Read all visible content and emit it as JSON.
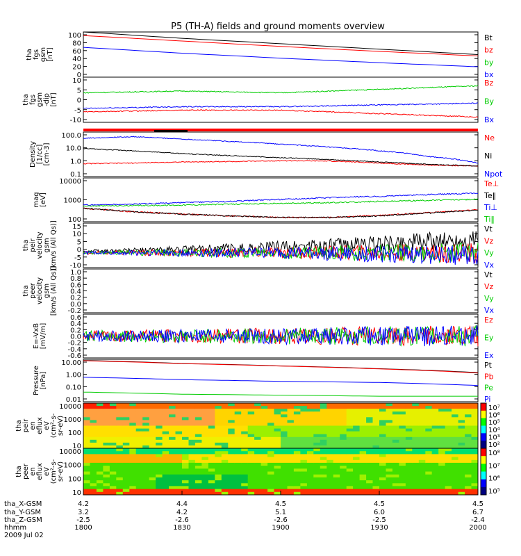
{
  "title": "P5 (TH-A) fields and ground moments overview",
  "colors": {
    "black": "#000000",
    "red": "#ff0000",
    "green": "#00cc00",
    "blue": "#0000ff",
    "axis": "#000000"
  },
  "chart_data": [
    {
      "id": "fgs_gsm",
      "type": "line",
      "ylabel": [
        "tha",
        "fgs",
        "gsm",
        "[nT]"
      ],
      "ylim": [
        0,
        100
      ],
      "yticks": [
        "100",
        "80",
        "60",
        "40",
        "20",
        "0"
      ],
      "legend": [
        {
          "label": "Bt",
          "color": "black"
        },
        {
          "label": "bz",
          "color": "red"
        },
        {
          "label": "by",
          "color": "green"
        },
        {
          "label": "bx",
          "color": "blue"
        }
      ],
      "x": [
        1800,
        1830,
        1900,
        1930,
        2000
      ],
      "series": [
        {
          "name": "Bt",
          "color": "black",
          "values": [
            100,
            86,
            74,
            62,
            50
          ]
        },
        {
          "name": "bz",
          "color": "red",
          "values": [
            92,
            80,
            68,
            57,
            47
          ]
        },
        {
          "name": "by",
          "color": "green",
          "values": [
            0,
            0,
            0,
            0,
            0
          ]
        },
        {
          "name": "bx",
          "color": "blue",
          "values": [
            66,
            53,
            42,
            32,
            23
          ]
        }
      ]
    },
    {
      "id": "fgs_gsm_dip",
      "type": "line",
      "ylabel": [
        "tha",
        "fgs",
        "gsm",
        "-dip",
        "[nT]"
      ],
      "ylim": [
        -13,
        13
      ],
      "yticks": [
        "10",
        "5",
        "0",
        "-5",
        "-10"
      ],
      "legend": [
        {
          "label": "Bz",
          "color": "red"
        },
        {
          "label": "By",
          "color": "green"
        },
        {
          "label": "Bx",
          "color": "blue"
        }
      ],
      "x": [
        1800,
        1830,
        1900,
        1930,
        2000
      ],
      "series": [
        {
          "name": "Bz",
          "color": "red",
          "values": [
            -7,
            -6,
            -6,
            -8,
            -10
          ]
        },
        {
          "name": "By",
          "color": "green",
          "values": [
            4,
            5,
            4,
            6,
            8
          ]
        },
        {
          "name": "Bx",
          "color": "blue",
          "values": [
            -5,
            -4,
            -4,
            -3,
            -2
          ]
        }
      ]
    },
    {
      "id": "density",
      "type": "line",
      "scale": "log",
      "ylabel": [
        "Density",
        "[1/cc]",
        "[cm-3]"
      ],
      "ylim": [
        0.1,
        200
      ],
      "yticks": [
        "100.0",
        "10.0",
        "1.0",
        "0.1"
      ],
      "legend": [
        {
          "label": "Ne",
          "color": "red"
        },
        {
          "label": "Ni",
          "color": "black"
        },
        {
          "label": "Npot",
          "color": "blue"
        }
      ],
      "x": [
        1800,
        1815,
        1830,
        1845,
        1900,
        1915,
        1930,
        1945,
        2000
      ],
      "series": [
        {
          "name": "Ne",
          "color": "red",
          "values": [
            0.9,
            1.0,
            1.2,
            1.3,
            1.5,
            1.4,
            1.0,
            0.7,
            0.6
          ]
        },
        {
          "name": "Ni",
          "color": "black",
          "values": [
            12,
            8,
            5,
            3.5,
            2.5,
            1.8,
            1.2,
            0.8,
            0.6
          ]
        },
        {
          "name": "Npot",
          "color": "blue",
          "values": [
            70,
            90,
            60,
            40,
            25,
            15,
            8,
            3,
            1
          ]
        }
      ]
    },
    {
      "id": "temperature",
      "type": "line",
      "scale": "log",
      "ylabel": [
        "mag",
        "[eV]"
      ],
      "ylim": [
        60,
        12000
      ],
      "yticks": [
        "10000",
        "1000",
        "100"
      ],
      "legend": [
        {
          "label": "Te⊥",
          "color": "red"
        },
        {
          "label": "Te‖",
          "color": "black"
        },
        {
          "label": "Ti⊥",
          "color": "blue"
        },
        {
          "label": "Ti‖",
          "color": "green"
        }
      ],
      "x": [
        1800,
        1815,
        1830,
        1845,
        1900,
        1915,
        1930,
        1945,
        2000
      ],
      "series": [
        {
          "name": "Te⊥",
          "color": "red",
          "values": [
            300,
            200,
            150,
            120,
            100,
            100,
            130,
            180,
            250
          ]
        },
        {
          "name": "Te‖",
          "color": "black",
          "values": [
            300,
            200,
            150,
            120,
            100,
            100,
            120,
            170,
            240
          ]
        },
        {
          "name": "Ti⊥",
          "color": "blue",
          "values": [
            450,
            500,
            600,
            700,
            900,
            1100,
            1300,
            1600,
            1900
          ]
        },
        {
          "name": "Ti‖",
          "color": "green",
          "values": [
            400,
            420,
            450,
            500,
            550,
            600,
            700,
            800,
            900
          ]
        }
      ]
    },
    {
      "id": "peir_velocity",
      "type": "line",
      "ylabel": [
        "tha",
        "peir",
        "velocity",
        "gsm",
        "[km/s (All Qs)]"
      ],
      "ylim": [
        -10,
        20
      ],
      "yticks": [
        "15",
        "10",
        "5",
        "0",
        "-5",
        "-10"
      ],
      "legend": [
        {
          "label": "Vt",
          "color": "black"
        },
        {
          "label": "Vz",
          "color": "red"
        },
        {
          "label": "Vy",
          "color": "green"
        },
        {
          "label": "Vx",
          "color": "blue"
        }
      ],
      "x": [
        1800,
        1830,
        1900,
        1930,
        2000
      ],
      "series": [
        {
          "name": "Vt",
          "color": "black",
          "values": [
            1,
            2,
            4,
            6,
            9
          ]
        },
        {
          "name": "Vz",
          "color": "red",
          "values": [
            0,
            0,
            0,
            0,
            0
          ]
        },
        {
          "name": "Vy",
          "color": "green",
          "values": [
            0,
            0,
            0,
            0,
            0
          ]
        },
        {
          "name": "Vx",
          "color": "blue",
          "values": [
            0,
            0,
            0,
            -1,
            -2
          ]
        }
      ]
    },
    {
      "id": "peer_velocity",
      "type": "line",
      "ylabel": [
        "tha",
        "peer",
        "velocity",
        "gsm",
        "[km/s (All Qs)]"
      ],
      "ylim": [
        -0.2,
        1.0
      ],
      "yticks": [
        "1.0",
        "0.8",
        "0.6",
        "0.4",
        "0.2",
        "0.0",
        "-0.2"
      ],
      "legend": [
        {
          "label": "Vt",
          "color": "black"
        },
        {
          "label": "Vz",
          "color": "red"
        },
        {
          "label": "Vy",
          "color": "green"
        },
        {
          "label": "Vx",
          "color": "blue"
        }
      ],
      "x": [
        1800,
        1830,
        1900,
        1930,
        2000
      ],
      "series": []
    },
    {
      "id": "e_vxb",
      "type": "line",
      "ylabel": [
        "E=-VxB",
        "[mV/m]"
      ],
      "ylim": [
        -0.6,
        0.6
      ],
      "yticks": [
        "0.6",
        "0.4",
        "0.2",
        "0.0",
        "-0.2",
        "-0.4",
        "-0.6"
      ],
      "legend": [
        {
          "label": "Ez",
          "color": "red"
        },
        {
          "label": "Ey",
          "color": "green"
        },
        {
          "label": "Ex",
          "color": "blue"
        }
      ],
      "x": [
        1800,
        1830,
        1900,
        1930,
        2000
      ],
      "series": [
        {
          "name": "Ez",
          "color": "red",
          "values": [
            0,
            0,
            0,
            0,
            0
          ]
        },
        {
          "name": "Ey",
          "color": "green",
          "values": [
            0,
            0,
            0,
            0,
            0
          ]
        },
        {
          "name": "Ex",
          "color": "blue",
          "values": [
            0,
            0,
            0,
            0,
            0
          ]
        }
      ]
    },
    {
      "id": "pressure",
      "type": "line",
      "scale": "log",
      "ylabel": [
        "Pressure",
        "[nPa]"
      ],
      "ylim": [
        0.01,
        12
      ],
      "yticks": [
        "10.00",
        "1.00",
        "0.10",
        "0.01"
      ],
      "legend": [
        {
          "label": "Pt",
          "color": "black"
        },
        {
          "label": "Pb",
          "color": "red"
        },
        {
          "label": "Pe",
          "color": "green"
        },
        {
          "label": "Pi",
          "color": "blue"
        }
      ],
      "x": [
        1800,
        1830,
        1900,
        1930,
        2000
      ],
      "series": [
        {
          "name": "Pt",
          "color": "black",
          "values": [
            10,
            6,
            4,
            2.5,
            1.3
          ]
        },
        {
          "name": "Pb",
          "color": "red",
          "values": [
            9.5,
            5.8,
            3.9,
            2.4,
            1.2
          ]
        },
        {
          "name": "Pe",
          "color": "green",
          "values": [
            0.05,
            0.035,
            0.03,
            0.025,
            0.025
          ]
        },
        {
          "name": "Pi",
          "color": "blue",
          "values": [
            0.6,
            0.4,
            0.3,
            0.25,
            0.15
          ]
        }
      ]
    },
    {
      "id": "peir_en_eflux",
      "type": "heatmap",
      "ylabel": [
        "tha",
        "peir",
        "en",
        "eflux",
        "eV",
        "(cm²-s-",
        "sr-eV)"
      ],
      "yticks": [
        "10000",
        "1000",
        "100",
        "10"
      ],
      "colorbar": [
        "10⁷",
        "10⁶",
        "10⁵",
        "10⁴",
        "10³",
        "10²"
      ]
    },
    {
      "id": "peer_en_eflux",
      "type": "heatmap",
      "ylabel": [
        "tha",
        "peer",
        "en",
        "eflux",
        "eV",
        "(cm²-s-",
        "sr-eV)"
      ],
      "yticks": [
        "10000",
        "1000",
        "100",
        "10"
      ],
      "colorbar": [
        "10⁸",
        "10⁷",
        "10⁶",
        "10⁵"
      ]
    }
  ],
  "x_axis": {
    "row_labels": [
      "tha_X-GSM",
      "tha_Y-GSM",
      "tha_Z-GSM",
      "hhmm",
      "2009 Jul 02"
    ],
    "ticks": [
      {
        "values": [
          "4.2",
          "3.2",
          "-2.5",
          "1800"
        ]
      },
      {
        "values": [
          "4.4",
          "4.2",
          "-2.6",
          "1830"
        ]
      },
      {
        "values": [
          "4.5",
          "5.1",
          "-2.6",
          "1900"
        ]
      },
      {
        "values": [
          "4.5",
          "6.0",
          "-2.5",
          "1930"
        ]
      },
      {
        "values": [
          "4.5",
          "6.7",
          "-2.4",
          "2000"
        ]
      }
    ]
  }
}
